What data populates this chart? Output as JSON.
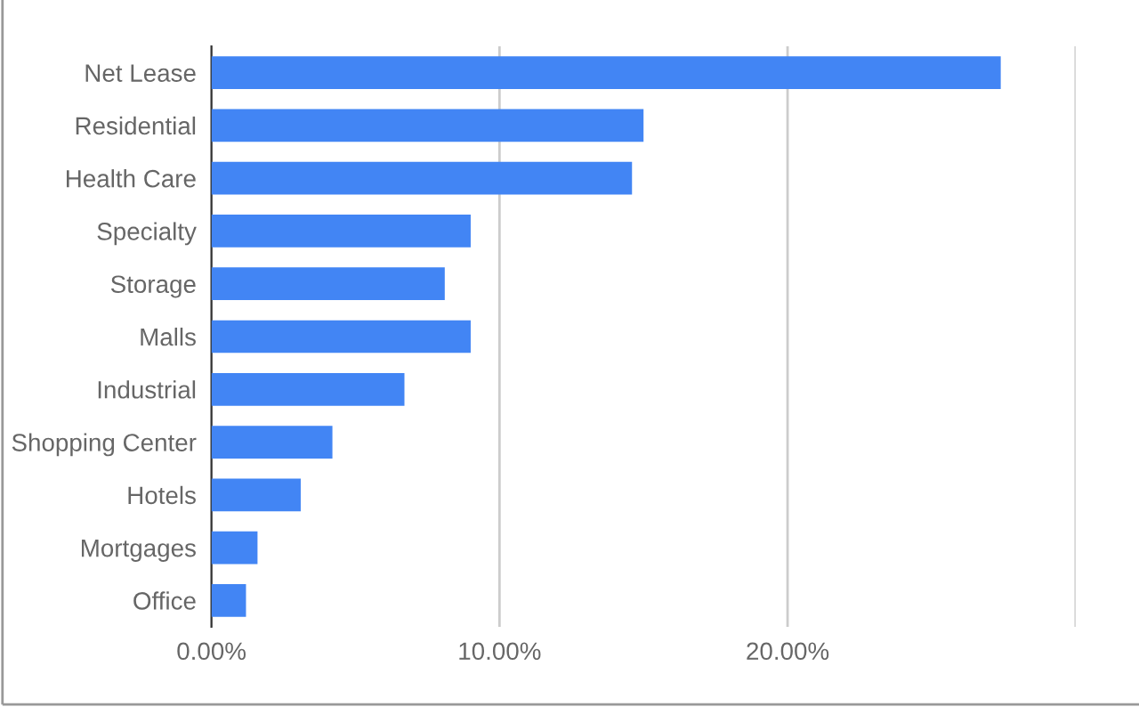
{
  "chart_data": {
    "type": "bar",
    "orientation": "horizontal",
    "categories": [
      "Net Lease",
      "Residential",
      "Health Care",
      "Specialty",
      "Storage",
      "Malls",
      "Industrial",
      "Shopping Center",
      "Hotels",
      "Mortgages",
      "Office"
    ],
    "values": [
      27.4,
      15.0,
      14.6,
      9.0,
      8.1,
      9.0,
      6.7,
      4.2,
      3.1,
      1.6,
      1.2
    ],
    "color": "#4285f4",
    "xlim": [
      0,
      30
    ],
    "xticks": [
      {
        "value": 0,
        "label": "0.00%"
      },
      {
        "value": 10,
        "label": "10.00%"
      },
      {
        "value": 20,
        "label": "20.00%"
      },
      {
        "value": 30,
        "label": null
      }
    ],
    "grid": "x",
    "legend": false
  }
}
